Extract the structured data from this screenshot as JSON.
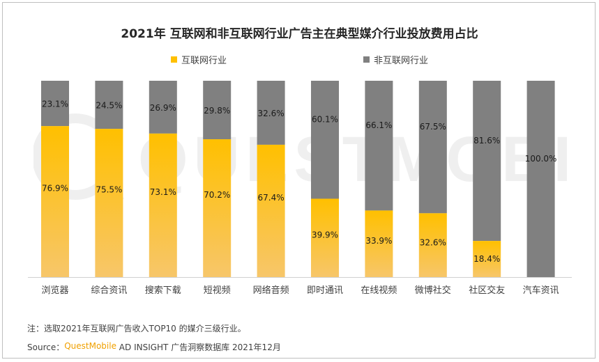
{
  "chart_data": {
    "type": "bar",
    "stacked": true,
    "normalized_percent": true,
    "title": "2021年 互联网和非互联网行业广告主在典型媒介行业投放费用占比",
    "categories": [
      "浏览器",
      "综合资讯",
      "搜索下载",
      "短视频",
      "网络音频",
      "即时通讯",
      "在线视频",
      "微博社交",
      "社区交友",
      "汽车资讯"
    ],
    "series": [
      {
        "name": "互联网行业",
        "values": [
          76.9,
          75.5,
          73.1,
          70.2,
          67.4,
          39.9,
          33.9,
          32.6,
          18.4,
          0
        ],
        "labels": [
          "76.9%",
          "75.5%",
          "73.1%",
          "70.2%",
          "67.4%",
          "39.9%",
          "33.9%",
          "32.6%",
          "18.4%",
          ""
        ]
      },
      {
        "name": "非互联网行业",
        "values": [
          23.1,
          24.5,
          26.9,
          29.8,
          32.6,
          60.1,
          66.1,
          67.5,
          81.6,
          100.0
        ],
        "labels": [
          "23.1%",
          "24.5%",
          "26.9%",
          "29.8%",
          "32.6%",
          "60.1%",
          "66.1%",
          "67.5%",
          "81.6%",
          "100.0%"
        ]
      }
    ],
    "colors": {
      "internet_top": "#ffc000",
      "internet_bottom": "#f7c66a",
      "non_internet": "#808080"
    },
    "ylim": [
      0,
      100
    ],
    "grid": false,
    "legend_position": "top"
  },
  "legend": {
    "internet": "互联网行业",
    "non_internet": "非互联网行业"
  },
  "note": "注：选取2021年互联网广告收入TOP10 的媒介三级行业。",
  "source": {
    "prefix": "Source：",
    "brand": "QuestMobile",
    "rest": " AD INSIGHT 广告洞察数据库 2021年12月"
  },
  "watermark": "QUESTMOBILE"
}
